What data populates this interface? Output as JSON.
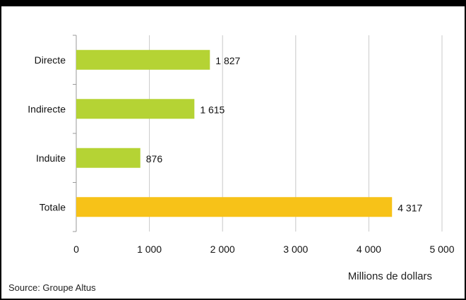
{
  "chart_data": {
    "type": "bar",
    "orientation": "horizontal",
    "categories": [
      "Directe",
      "Indirecte",
      "Induite",
      "Totale"
    ],
    "values": [
      1827,
      1615,
      876,
      4317
    ],
    "value_labels": [
      "1 827",
      "1 615",
      "876",
      "4 317"
    ],
    "bar_colors": [
      "#b5d334",
      "#b5d334",
      "#b5d334",
      "#f7c218"
    ],
    "xlim": [
      0,
      5000
    ],
    "xticks": [
      0,
      1000,
      2000,
      3000,
      4000,
      5000
    ],
    "xtick_labels": [
      "0",
      "1 000",
      "2 000",
      "3 000",
      "4 000",
      "5 000"
    ],
    "xlabel": "Millions de dollars",
    "grid": "vertical"
  },
  "source": "Source: Groupe Altus"
}
